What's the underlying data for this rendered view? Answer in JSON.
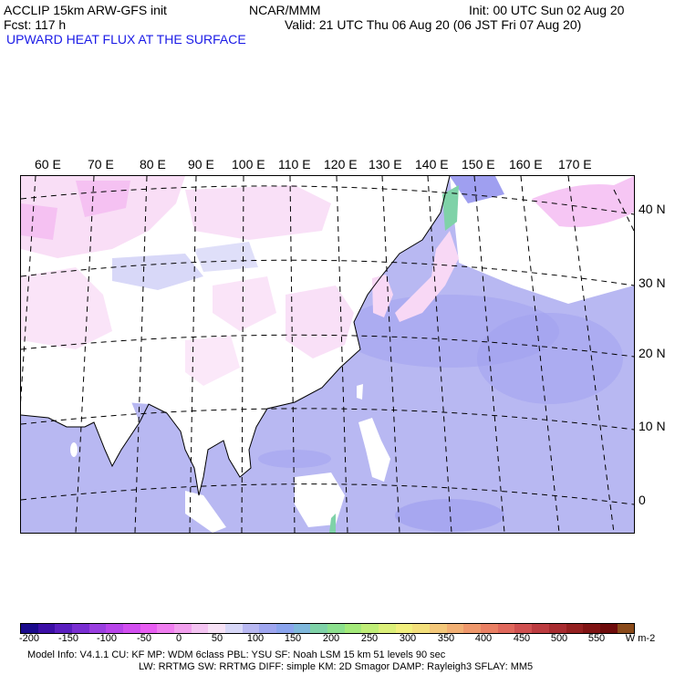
{
  "header": {
    "model_line": "ACCLIP 15km ARW-GFS init",
    "fcst_line": "Fcst:  117 h",
    "center": "NCAR/MMM",
    "init": "Init: 00 UTC Sun 02 Aug 20",
    "valid": "Valid: 21 UTC Thu 06 Aug 20 (06 JST Fri 07 Aug 20)",
    "field_title": "UPWARD HEAT FLUX AT THE SURFACE"
  },
  "map": {
    "lon_labels": [
      "60 E",
      "70 E",
      "80 E",
      "90 E",
      "100 E",
      "110 E",
      "120 E",
      "130 E",
      "140 E",
      "150 E",
      "160 E",
      "170 E"
    ],
    "lat_labels": [
      "40 N",
      "30 N",
      "20 N",
      "10 N",
      "0"
    ],
    "colors": {
      "land": "#ffffff",
      "land_pink_light": "#f8d8f5",
      "land_pink": "#f2aef0",
      "ocean": "#b8b8f2",
      "ocean_darker": "#9f9ff0",
      "green": "#7fd2a8",
      "coast": "#000000"
    }
  },
  "colorbar": {
    "tick_labels": [
      "-200",
      "-150",
      "-100",
      "-50",
      "0",
      "50",
      "100",
      "150",
      "200",
      "250",
      "300",
      "350",
      "400",
      "450",
      "500",
      "550"
    ],
    "units": "W m-2",
    "colors": [
      "#1a0a8c",
      "#3c0fa6",
      "#5a1fbf",
      "#7a2fd2",
      "#9a3fe0",
      "#b845ea",
      "#d24ff0",
      "#e85ef2",
      "#f07ef0",
      "#f2a0ee",
      "#f4c4f2",
      "#f7e2f6",
      "#d8d8f8",
      "#b8b8f2",
      "#9fa6f0",
      "#8aa4ee",
      "#7fb8dc",
      "#7fd2a8",
      "#8ce08e",
      "#a4ea7a",
      "#c0ee78",
      "#dcf07a",
      "#f2f07e",
      "#f4e07c",
      "#f4c87a",
      "#f2b074",
      "#ef986c",
      "#ea8064",
      "#e0685c",
      "#d05050",
      "#bc3c40",
      "#a82c30",
      "#942020",
      "#801414",
      "#6e0c0c",
      "#8a4a1a"
    ]
  },
  "footer": {
    "line1": "Model Info: V4.1.1     CU: KF       MP: WDM 6class  PBL: YSU      SF: Noah LSM     15 km    51 levels    90 sec",
    "line2": "LW: RRTMG   SW: RRTMG  DIFF: simple KM: 2D Smagor DAMP: Rayleigh3  SFLAY: MM5"
  }
}
